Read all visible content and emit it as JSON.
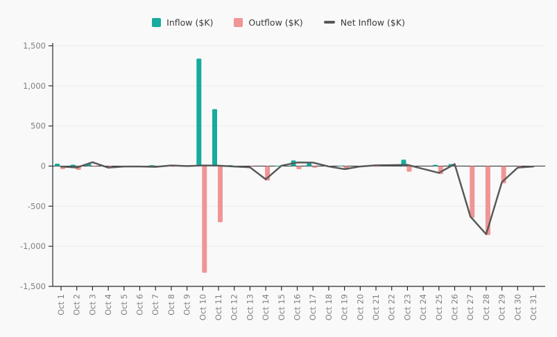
{
  "page": {
    "background": "#f9f9f9"
  },
  "chart_data": {
    "type": "bar+line",
    "title": "",
    "xlabel": "",
    "ylabel": "",
    "categories": [
      "Oct 1",
      "Oct 2",
      "Oct 3",
      "Oct 4",
      "Oct 5",
      "Oct 6",
      "Oct 7",
      "Oct 8",
      "Oct 9",
      "Oct 10",
      "Oct 11",
      "Oct 12",
      "Oct 13",
      "Oct 14",
      "Oct 15",
      "Oct 16",
      "Oct 17",
      "Oct 18",
      "Oct 19",
      "Oct 20",
      "Oct 21",
      "Oct 22",
      "Oct 23",
      "Oct 24",
      "Oct 25",
      "Oct 26",
      "Oct 27",
      "Oct 28",
      "Oct 29",
      "Oct 30",
      "Oct 31"
    ],
    "series": [
      {
        "name": "Inflow ($K)",
        "type": "bar",
        "color": "#17ab9e",
        "values": [
          30,
          17,
          28,
          0,
          0,
          0,
          12,
          0,
          0,
          1340,
          710,
          12,
          0,
          0,
          5,
          70,
          35,
          0,
          5,
          0,
          15,
          0,
          80,
          0,
          15,
          25,
          0,
          0,
          0,
          0,
          0
        ]
      },
      {
        "name": "Outflow ($K)",
        "type": "bar",
        "color": "#f09595",
        "values": [
          -38,
          -48,
          -5,
          -25,
          0,
          -5,
          -15,
          -5,
          0,
          -1330,
          -700,
          -10,
          -5,
          -180,
          0,
          -40,
          -22,
          -5,
          -48,
          -3,
          -5,
          0,
          -70,
          0,
          -100,
          0,
          -645,
          -860,
          -215,
          -20,
          0
        ]
      },
      {
        "name": "Net Inflow ($K)",
        "type": "line",
        "color": "#595959",
        "values": [
          -5,
          -18,
          48,
          -20,
          -5,
          -5,
          -10,
          8,
          0,
          8,
          5,
          -5,
          -15,
          -165,
          5,
          45,
          43,
          -5,
          -38,
          -5,
          10,
          12,
          15,
          -35,
          -85,
          25,
          -630,
          -850,
          -200,
          -20,
          -5
        ]
      }
    ],
    "ylim": [
      -1500,
      1500
    ],
    "yticks": {
      "values": [
        1500,
        1000,
        500,
        0,
        -500,
        -1000,
        -1500
      ],
      "labels": [
        "1,500",
        "1,000",
        "500",
        "0",
        "-500",
        "-1,000",
        "-1,500"
      ]
    },
    "grid": true,
    "legend_position": "top-center",
    "axis_color": "#2b2b2b",
    "grid_color": "#ececec",
    "tick_label_color": "#7f7f7f"
  }
}
